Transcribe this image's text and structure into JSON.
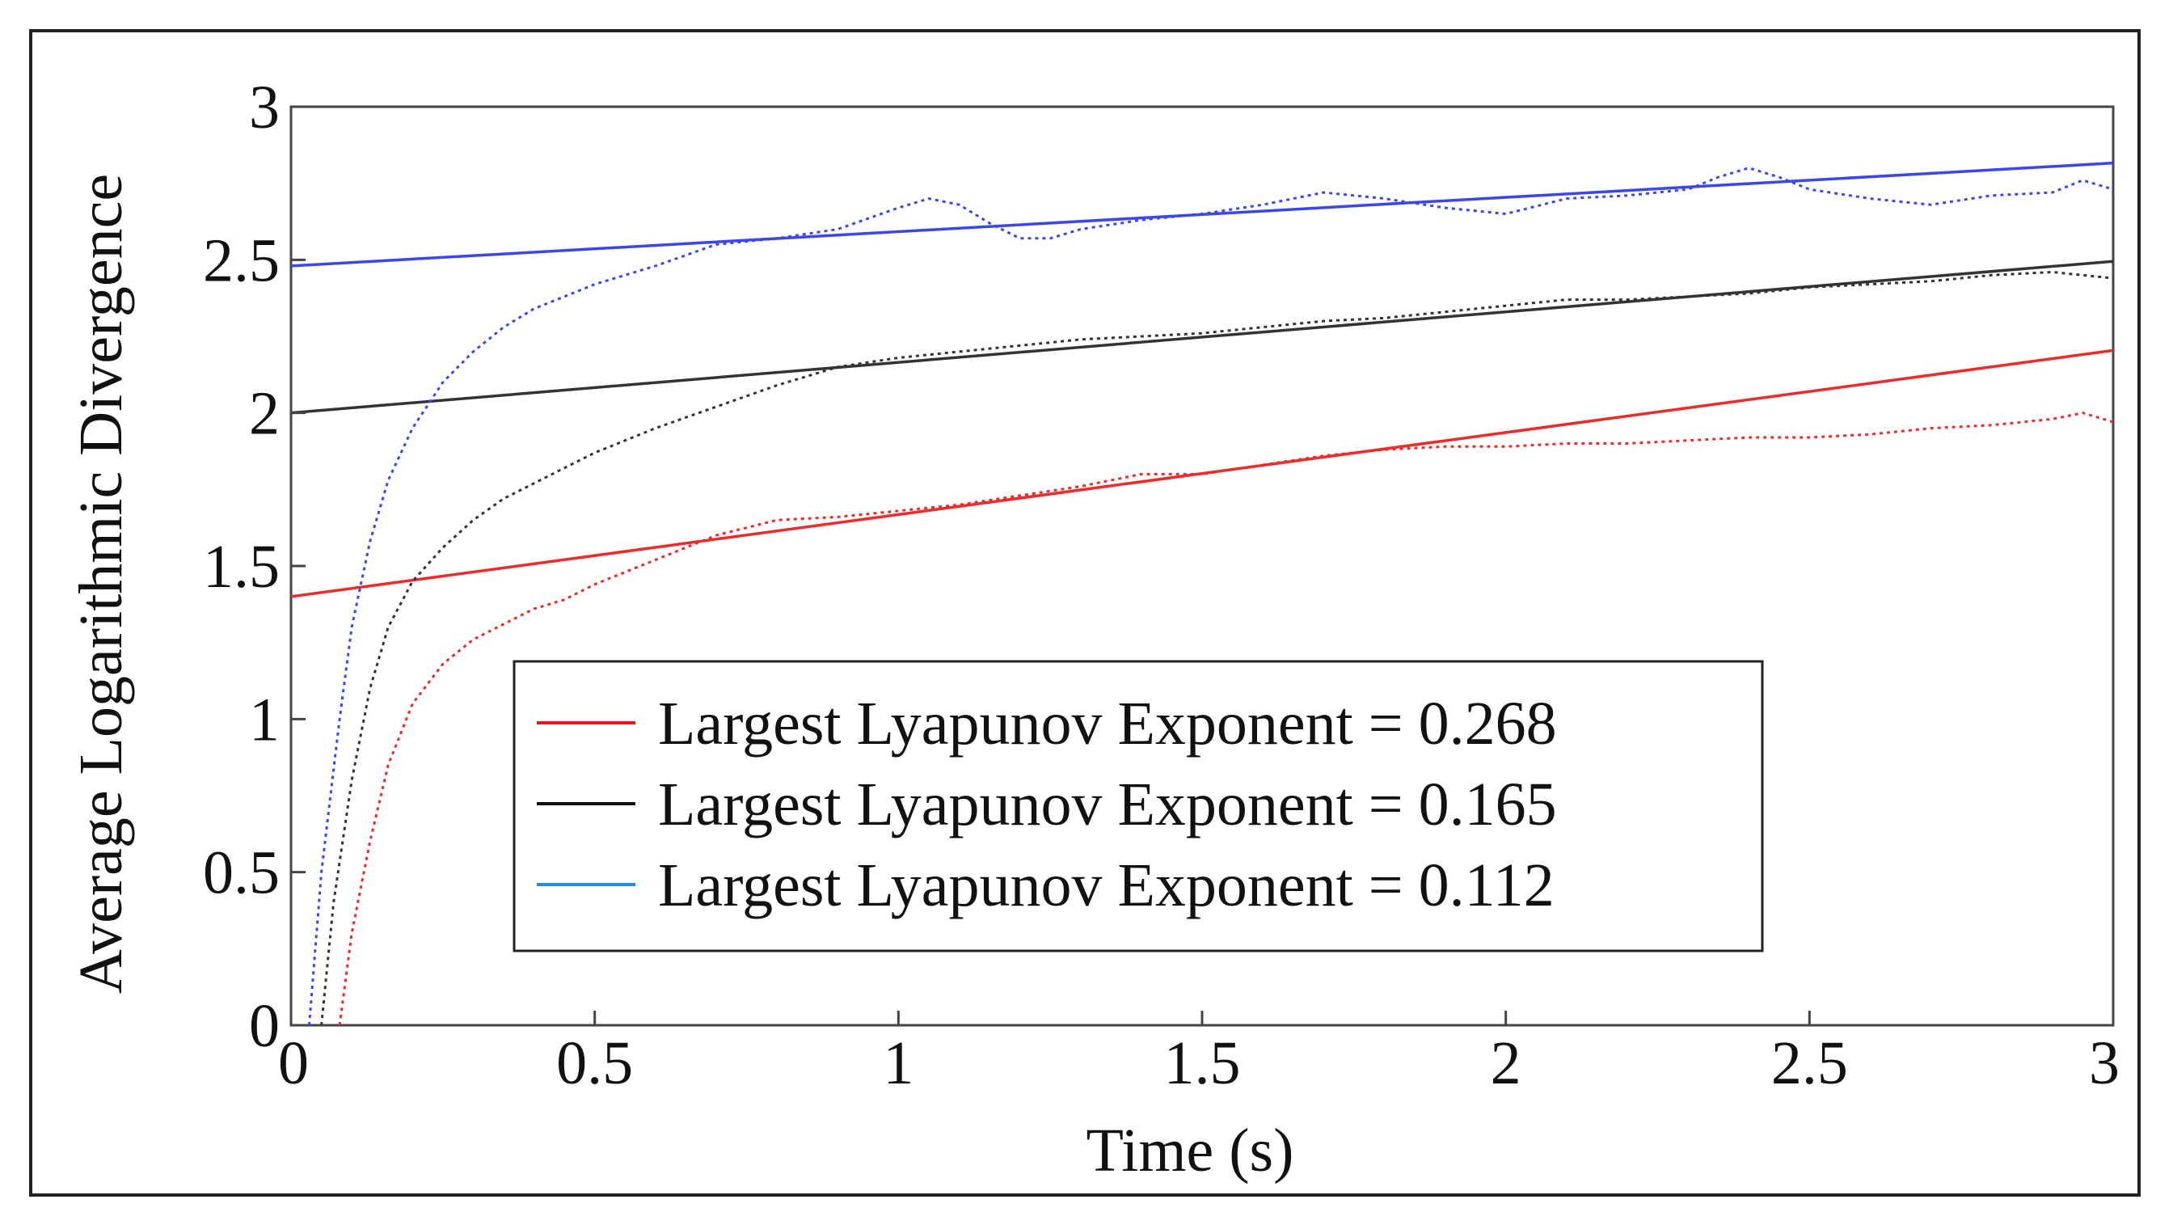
{
  "chart_data": {
    "type": "line",
    "title": "",
    "xlabel": "Time (s)",
    "ylabel": "Average Logarithmic Divergence",
    "xlim": [
      0,
      3
    ],
    "ylim": [
      0,
      3
    ],
    "xticks": [
      0,
      0.5,
      1,
      1.5,
      2,
      2.5,
      3
    ],
    "yticks": [
      0,
      0.5,
      1,
      1.5,
      2,
      2.5,
      3
    ],
    "xtick_labels": [
      "0",
      "0.5",
      "1",
      "1.5",
      "2",
      "2.5",
      "3"
    ],
    "ytick_labels": [
      "0",
      "0.5",
      "1",
      "1.5",
      "2",
      "2.5",
      "3"
    ],
    "grid": false,
    "legend_position": "lower-center",
    "series": [
      {
        "name": "Largest Lyapunov Exponent = 0.268",
        "legend_color": "#e8141c",
        "color": "#ee2a2a",
        "fit": {
          "intercept": 1.4,
          "slope": 0.268
        },
        "measured": {
          "x": [
            0.08,
            0.1,
            0.13,
            0.16,
            0.2,
            0.25,
            0.3,
            0.35,
            0.4,
            0.45,
            0.5,
            0.6,
            0.7,
            0.8,
            0.9,
            1.0,
            1.1,
            1.2,
            1.3,
            1.4,
            1.5,
            1.6,
            1.7,
            1.8,
            1.9,
            2.0,
            2.1,
            2.2,
            2.3,
            2.4,
            2.5,
            2.6,
            2.7,
            2.8,
            2.9,
            2.95,
            3.0
          ],
          "y": [
            0.0,
            0.3,
            0.6,
            0.85,
            1.05,
            1.18,
            1.26,
            1.31,
            1.36,
            1.39,
            1.44,
            1.52,
            1.6,
            1.65,
            1.66,
            1.68,
            1.7,
            1.73,
            1.76,
            1.8,
            1.8,
            1.83,
            1.86,
            1.88,
            1.89,
            1.89,
            1.9,
            1.9,
            1.91,
            1.92,
            1.92,
            1.93,
            1.95,
            1.96,
            1.98,
            2.0,
            1.97
          ]
        }
      },
      {
        "name": "Largest Lyapunov Exponent = 0.165",
        "legend_color": "#111111",
        "color": "#333333",
        "fit": {
          "intercept": 2.0,
          "slope": 0.165
        },
        "measured": {
          "x": [
            0.05,
            0.07,
            0.1,
            0.13,
            0.16,
            0.2,
            0.25,
            0.3,
            0.35,
            0.4,
            0.45,
            0.5,
            0.6,
            0.7,
            0.8,
            0.9,
            1.0,
            1.1,
            1.2,
            1.3,
            1.4,
            1.5,
            1.6,
            1.7,
            1.8,
            1.9,
            2.0,
            2.1,
            2.2,
            2.3,
            2.4,
            2.5,
            2.6,
            2.7,
            2.8,
            2.9,
            3.0
          ],
          "y": [
            0.0,
            0.4,
            0.8,
            1.1,
            1.3,
            1.45,
            1.56,
            1.65,
            1.72,
            1.77,
            1.82,
            1.87,
            1.95,
            2.02,
            2.09,
            2.15,
            2.18,
            2.2,
            2.22,
            2.24,
            2.25,
            2.26,
            2.28,
            2.3,
            2.31,
            2.33,
            2.35,
            2.37,
            2.37,
            2.38,
            2.39,
            2.41,
            2.42,
            2.43,
            2.45,
            2.46,
            2.44
          ]
        }
      },
      {
        "name": "Largest Lyapunov Exponent = 0.112",
        "legend_color": "#1b8ff0",
        "color": "#3c46f0",
        "fit": {
          "intercept": 2.48,
          "slope": 0.112
        },
        "measured": {
          "x": [
            0.03,
            0.05,
            0.08,
            0.1,
            0.13,
            0.16,
            0.2,
            0.25,
            0.3,
            0.35,
            0.4,
            0.45,
            0.5,
            0.6,
            0.7,
            0.8,
            0.9,
            1.0,
            1.05,
            1.1,
            1.15,
            1.2,
            1.25,
            1.3,
            1.4,
            1.5,
            1.6,
            1.7,
            1.8,
            1.9,
            2.0,
            2.1,
            2.2,
            2.3,
            2.35,
            2.4,
            2.45,
            2.5,
            2.6,
            2.7,
            2.8,
            2.9,
            2.95,
            3.0
          ],
          "y": [
            0.0,
            0.5,
            1.0,
            1.3,
            1.58,
            1.78,
            1.95,
            2.1,
            2.2,
            2.28,
            2.34,
            2.38,
            2.42,
            2.48,
            2.55,
            2.57,
            2.6,
            2.67,
            2.7,
            2.68,
            2.62,
            2.57,
            2.57,
            2.6,
            2.63,
            2.65,
            2.68,
            2.72,
            2.7,
            2.67,
            2.65,
            2.7,
            2.71,
            2.73,
            2.77,
            2.8,
            2.77,
            2.73,
            2.7,
            2.68,
            2.71,
            2.72,
            2.76,
            2.73
          ]
        }
      }
    ]
  }
}
